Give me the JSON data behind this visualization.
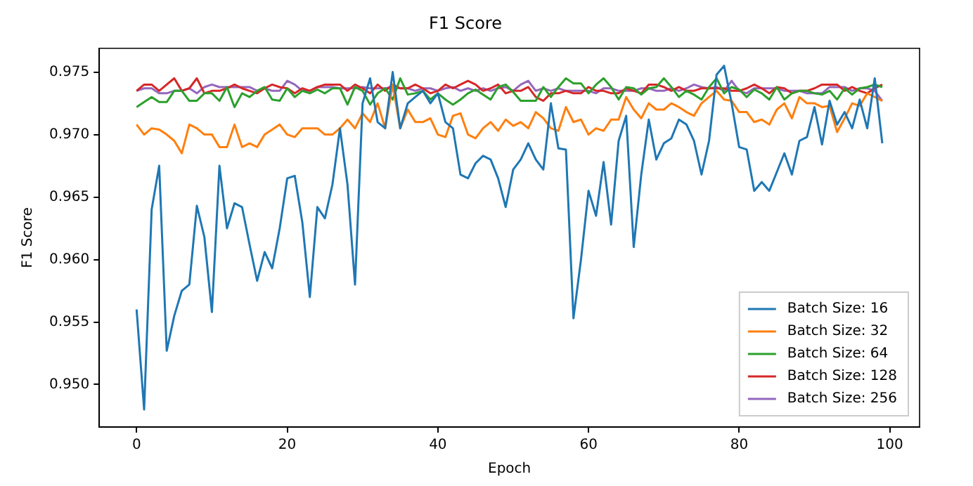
{
  "chart_data": {
    "type": "line",
    "title": "F1 Score",
    "xlabel": "Epoch",
    "ylabel": "F1 Score",
    "x": [
      0,
      1,
      2,
      3,
      4,
      5,
      6,
      7,
      8,
      9,
      10,
      11,
      12,
      13,
      14,
      15,
      16,
      17,
      18,
      19,
      20,
      21,
      22,
      23,
      24,
      25,
      26,
      27,
      28,
      29,
      30,
      31,
      32,
      33,
      34,
      35,
      36,
      37,
      38,
      39,
      40,
      41,
      42,
      43,
      44,
      45,
      46,
      47,
      48,
      49,
      50,
      51,
      52,
      53,
      54,
      55,
      56,
      57,
      58,
      59,
      60,
      61,
      62,
      63,
      64,
      65,
      66,
      67,
      68,
      69,
      70,
      71,
      72,
      73,
      74,
      75,
      76,
      77,
      78,
      79,
      80,
      81,
      82,
      83,
      84,
      85,
      86,
      87,
      88,
      89,
      90,
      91,
      92,
      93,
      94,
      95,
      96,
      97,
      98,
      99
    ],
    "series": [
      {
        "name": "Batch Size: 16",
        "color": "#1f77b4",
        "values": [
          0.956,
          0.948,
          0.964,
          0.9675,
          0.9527,
          0.9555,
          0.9575,
          0.958,
          0.9643,
          0.9618,
          0.9558,
          0.9675,
          0.9625,
          0.9645,
          0.9642,
          0.9612,
          0.9583,
          0.9606,
          0.9593,
          0.9625,
          0.9665,
          0.9667,
          0.963,
          0.957,
          0.9642,
          0.9633,
          0.966,
          0.9705,
          0.966,
          0.958,
          0.9725,
          0.9745,
          0.971,
          0.9705,
          0.975,
          0.9705,
          0.9725,
          0.973,
          0.9735,
          0.9725,
          0.9733,
          0.971,
          0.9705,
          0.9668,
          0.9665,
          0.9677,
          0.9683,
          0.968,
          0.9665,
          0.9642,
          0.9672,
          0.968,
          0.9693,
          0.968,
          0.9672,
          0.9725,
          0.9689,
          0.9688,
          0.9553,
          0.96,
          0.9655,
          0.9635,
          0.9678,
          0.9628,
          0.9695,
          0.9715,
          0.961,
          0.9668,
          0.9712,
          0.968,
          0.9693,
          0.9697,
          0.9712,
          0.9708,
          0.9695,
          0.9668,
          0.9695,
          0.9748,
          0.9755,
          0.9725,
          0.969,
          0.9688,
          0.9655,
          0.9662,
          0.9655,
          0.967,
          0.9685,
          0.9668,
          0.9695,
          0.9698,
          0.9722,
          0.9692,
          0.9727,
          0.9708,
          0.9718,
          0.9705,
          0.9728,
          0.9705,
          0.9745,
          0.9693
        ]
      },
      {
        "name": "Batch Size: 32",
        "color": "#ff7f0e",
        "values": [
          0.9708,
          0.97,
          0.9705,
          0.9704,
          0.97,
          0.9695,
          0.9685,
          0.9708,
          0.9705,
          0.97,
          0.97,
          0.969,
          0.969,
          0.9708,
          0.969,
          0.9693,
          0.969,
          0.97,
          0.9704,
          0.9708,
          0.97,
          0.9698,
          0.9705,
          0.9705,
          0.9705,
          0.97,
          0.97,
          0.9705,
          0.9712,
          0.9705,
          0.9717,
          0.971,
          0.9725,
          0.9705,
          0.974,
          0.9705,
          0.972,
          0.971,
          0.971,
          0.9713,
          0.97,
          0.9698,
          0.9715,
          0.9717,
          0.97,
          0.9697,
          0.9705,
          0.971,
          0.9703,
          0.9712,
          0.9707,
          0.971,
          0.9705,
          0.9718,
          0.9713,
          0.9705,
          0.9703,
          0.9722,
          0.971,
          0.9712,
          0.97,
          0.9705,
          0.9703,
          0.9712,
          0.9712,
          0.973,
          0.972,
          0.9713,
          0.9725,
          0.972,
          0.972,
          0.9725,
          0.9722,
          0.9718,
          0.9715,
          0.9725,
          0.973,
          0.9735,
          0.9728,
          0.9727,
          0.9718,
          0.9718,
          0.971,
          0.9712,
          0.9708,
          0.972,
          0.9725,
          0.9713,
          0.973,
          0.9725,
          0.9725,
          0.9722,
          0.9723,
          0.9702,
          0.9713,
          0.9725,
          0.9723,
          0.9733,
          0.973,
          0.9727
        ]
      },
      {
        "name": "Batch Size: 64",
        "color": "#2ca02c",
        "values": [
          0.9722,
          0.9726,
          0.973,
          0.9726,
          0.9726,
          0.9735,
          0.9735,
          0.9727,
          0.9727,
          0.9733,
          0.9733,
          0.9727,
          0.9738,
          0.9722,
          0.9733,
          0.973,
          0.9735,
          0.9738,
          0.9728,
          0.9727,
          0.9737,
          0.973,
          0.9735,
          0.9733,
          0.9736,
          0.9733,
          0.9737,
          0.9737,
          0.9724,
          0.9738,
          0.9735,
          0.9724,
          0.9733,
          0.9737,
          0.9728,
          0.9745,
          0.9732,
          0.9733,
          0.9735,
          0.9728,
          0.9733,
          0.9728,
          0.9724,
          0.9728,
          0.9733,
          0.9736,
          0.9732,
          0.9728,
          0.9738,
          0.974,
          0.9734,
          0.9727,
          0.9727,
          0.9727,
          0.9738,
          0.973,
          0.9738,
          0.9745,
          0.9741,
          0.9741,
          0.9733,
          0.974,
          0.9745,
          0.9738,
          0.9728,
          0.9738,
          0.9737,
          0.9732,
          0.9737,
          0.9738,
          0.9745,
          0.9738,
          0.973,
          0.9735,
          0.9732,
          0.9728,
          0.9738,
          0.9745,
          0.9733,
          0.9738,
          0.9736,
          0.973,
          0.9736,
          0.9733,
          0.9728,
          0.9738,
          0.9728,
          0.9733,
          0.9735,
          0.9735,
          0.9733,
          0.9732,
          0.9735,
          0.9728,
          0.9737,
          0.9732,
          0.9737,
          0.9738,
          0.974,
          0.9738
        ]
      },
      {
        "name": "Batch Size: 128",
        "color": "#d62728",
        "values": [
          0.9735,
          0.974,
          0.974,
          0.9735,
          0.974,
          0.9745,
          0.9735,
          0.9737,
          0.9745,
          0.9733,
          0.9735,
          0.9735,
          0.9737,
          0.974,
          0.9737,
          0.9735,
          0.9733,
          0.9737,
          0.974,
          0.9738,
          0.9737,
          0.9733,
          0.9737,
          0.9735,
          0.9738,
          0.974,
          0.974,
          0.974,
          0.9735,
          0.974,
          0.9737,
          0.9733,
          0.974,
          0.9735,
          0.974,
          0.9737,
          0.9737,
          0.974,
          0.9737,
          0.9733,
          0.9735,
          0.974,
          0.9737,
          0.974,
          0.9743,
          0.974,
          0.9735,
          0.9737,
          0.974,
          0.9733,
          0.9735,
          0.9735,
          0.9738,
          0.973,
          0.9727,
          0.9733,
          0.9733,
          0.9735,
          0.9733,
          0.9733,
          0.9738,
          0.9735,
          0.9735,
          0.9733,
          0.9733,
          0.9737,
          0.9735,
          0.9733,
          0.974,
          0.974,
          0.9738,
          0.9735,
          0.9738,
          0.9735,
          0.9735,
          0.9737,
          0.9737,
          0.9737,
          0.9737,
          0.9735,
          0.9735,
          0.9737,
          0.974,
          0.9737,
          0.9733,
          0.9738,
          0.9737,
          0.9733,
          0.9735,
          0.9735,
          0.9737,
          0.974,
          0.974,
          0.974,
          0.9735,
          0.9738,
          0.9735,
          0.9733,
          0.9737,
          0.974
        ]
      },
      {
        "name": "Batch Size: 256",
        "color": "#9467bd",
        "values": [
          0.9735,
          0.9737,
          0.9737,
          0.9733,
          0.9733,
          0.9735,
          0.9735,
          0.9737,
          0.9733,
          0.9738,
          0.974,
          0.9738,
          0.9738,
          0.9738,
          0.9738,
          0.9738,
          0.9735,
          0.9737,
          0.9735,
          0.9735,
          0.9743,
          0.974,
          0.9735,
          0.9735,
          0.9738,
          0.9738,
          0.9738,
          0.9737,
          0.9737,
          0.9737,
          0.9738,
          0.9737,
          0.9737,
          0.9737,
          0.9738,
          0.9737,
          0.9737,
          0.9735,
          0.9737,
          0.9737,
          0.9735,
          0.9737,
          0.9738,
          0.9735,
          0.9737,
          0.9735,
          0.9737,
          0.9735,
          0.9737,
          0.9738,
          0.9735,
          0.974,
          0.9743,
          0.9735,
          0.9737,
          0.9735,
          0.9737,
          0.9735,
          0.9735,
          0.9735,
          0.9735,
          0.9733,
          0.9737,
          0.9737,
          0.9735,
          0.9735,
          0.9735,
          0.9737,
          0.9737,
          0.9735,
          0.9735,
          0.9737,
          0.9735,
          0.9737,
          0.974,
          0.9738,
          0.9737,
          0.9738,
          0.9735,
          0.9743,
          0.9735,
          0.9733,
          0.9737,
          0.9737,
          0.9737,
          0.9737,
          0.9735,
          0.9735,
          0.9735,
          0.9733,
          0.9733,
          0.9733,
          0.9738,
          0.9738,
          0.9738,
          0.9735,
          0.9737,
          0.9737,
          0.9735,
          0.9727
        ]
      }
    ],
    "xlim": [
      -4.95,
      103.95
    ],
    "xticks": [
      0,
      20,
      40,
      60,
      80,
      100
    ],
    "ylim": [
      0.9466,
      0.9769
    ],
    "yticks": [
      {
        "value": 0.95,
        "label": "0.950"
      },
      {
        "value": 0.955,
        "label": "0.955"
      },
      {
        "value": 0.96,
        "label": "0.960"
      },
      {
        "value": 0.965,
        "label": "0.965"
      },
      {
        "value": 0.97,
        "label": "0.970"
      },
      {
        "value": 0.975,
        "label": "0.975"
      }
    ],
    "grid": false,
    "legend": "bottom right",
    "marker": "none",
    "line_style": "solid"
  }
}
